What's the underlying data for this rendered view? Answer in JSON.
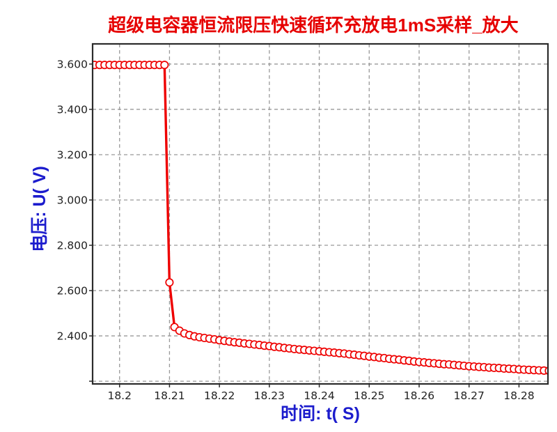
{
  "chart_data": {
    "type": "line",
    "title": "超级电容器恒流限压快速循环充放电1mS采样_放大",
    "xlabel": "时间: t( S)",
    "ylabel": "电压: U( V)",
    "grid": true,
    "legend": false,
    "xlim": [
      18.1946,
      18.2858
    ],
    "ylim": [
      2.188,
      3.689
    ],
    "x_ticks": [
      {
        "v": 18.2,
        "label": "18.2"
      },
      {
        "v": 18.21,
        "label": "18.21"
      },
      {
        "v": 18.22,
        "label": "18.22"
      },
      {
        "v": 18.23,
        "label": "18.23"
      },
      {
        "v": 18.24,
        "label": "18.24"
      },
      {
        "v": 18.25,
        "label": "18.25"
      },
      {
        "v": 18.26,
        "label": "18.26"
      },
      {
        "v": 18.27,
        "label": "18.27"
      },
      {
        "v": 18.28,
        "label": "18.28"
      }
    ],
    "y_ticks": [
      {
        "v": 3.6,
        "label": "3.600"
      },
      {
        "v": 3.4,
        "label": "3.400"
      },
      {
        "v": 3.2,
        "label": "3.200"
      },
      {
        "v": 3.0,
        "label": "3.000"
      },
      {
        "v": 2.8,
        "label": "2.800"
      },
      {
        "v": 2.6,
        "label": "2.600"
      },
      {
        "v": 2.4,
        "label": "2.400"
      },
      {
        "v": 2.2,
        "label": ""
      }
    ],
    "sampling_note": "1mS",
    "series": [
      {
        "name": "U",
        "marker": "open-circle",
        "t_start": 18.195,
        "dt": 0.001,
        "values": [
          3.596,
          3.596,
          3.596,
          3.596,
          3.596,
          3.596,
          3.596,
          3.596,
          3.596,
          3.596,
          3.596,
          3.596,
          3.596,
          3.596,
          3.596,
          2.636,
          2.439,
          2.423,
          2.411,
          2.404,
          2.398,
          2.394,
          2.391,
          2.388,
          2.385,
          2.381,
          2.378,
          2.375,
          2.372,
          2.37,
          2.367,
          2.365,
          2.362,
          2.36,
          2.357,
          2.355,
          2.352,
          2.35,
          2.347,
          2.345,
          2.342,
          2.34,
          2.338,
          2.336,
          2.334,
          2.332,
          2.33,
          2.328,
          2.326,
          2.324,
          2.322,
          2.319,
          2.317,
          2.314,
          2.312,
          2.309,
          2.307,
          2.304,
          2.302,
          2.299,
          2.297,
          2.295,
          2.292,
          2.29,
          2.287,
          2.285,
          2.283,
          2.281,
          2.279,
          2.277,
          2.275,
          2.274,
          2.272,
          2.27,
          2.268,
          2.266,
          2.265,
          2.263,
          2.262,
          2.26,
          2.259,
          2.258,
          2.256,
          2.255,
          2.254,
          2.252,
          2.251,
          2.25,
          2.249,
          2.248,
          2.247,
          2.246
        ]
      }
    ]
  },
  "colors": {
    "title": "#e60000",
    "axis_label": "#1c1ccd",
    "curve": "#ee0000",
    "marker_fill": "#ffffff",
    "grid": "#999999",
    "frame": "#2b2b2b",
    "tick_text": "#222222",
    "background": "#ffffff"
  }
}
